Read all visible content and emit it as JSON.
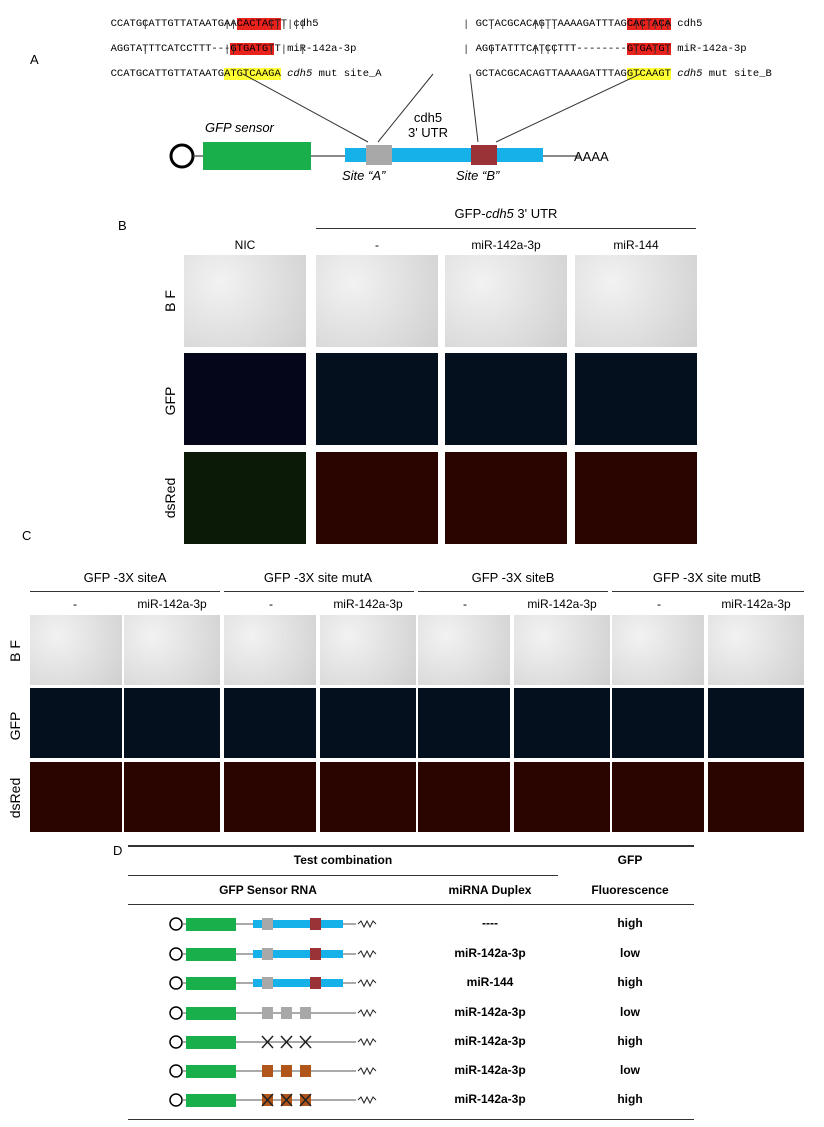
{
  "panels": {
    "A": "A",
    "B": "B",
    "C": "C",
    "D": "D"
  },
  "panelA": {
    "left": {
      "seq1": "CCATGCATTGTTATAATGAA",
      "seq1_hl": "CACTACT",
      "seq1_end": "T",
      "seq1_label": "cdh5",
      "seq2": "AGGTATTTCATCCTTT---",
      "seq2_hl": "GTGATGT",
      "seq2_end": "T",
      "seq2_label": "miR-142a-3p",
      "seq3": "CCATGCATTGTTATAATG",
      "seq3_mut": "ATGTCAAGA",
      "seq3_label_it": "cdh5",
      "seq3_label": " mut site_A"
    },
    "right": {
      "seq1": "GCTACGCACAGTTAAAAGATTTAG",
      "seq1_hl": "CACTACA",
      "seq1_label": "cdh5",
      "seq2": "AGGTATTTCATCCTTT--------",
      "seq2_hl": "GTGATGT",
      "seq2_label": "miR-142a-3p",
      "seq3": "GCTACGCACAGTTAAAAGATTTAG",
      "seq3_mut": "GTCAAGT",
      "seq3_label_it": "cdh5",
      "seq3_label": " mut site_B"
    },
    "gfp_sensor": "GFP sensor",
    "utr_label1": "cdh5",
    "utr_label2": "3' UTR",
    "siteA": "Site “A”",
    "siteB": "Site “B”",
    "polyA": "AAAA"
  },
  "panelB": {
    "header": "GFP-",
    "header_it": "cdh5",
    "header_end": " 3' UTR",
    "cols": [
      "NIC",
      "-",
      "miR-142a-3p",
      "miR-144"
    ],
    "rows": [
      "B F",
      "GFP",
      "dsRed"
    ]
  },
  "panelC": {
    "groups": [
      "GFP -3X siteA",
      "GFP -3X site mutA",
      "GFP -3X siteB",
      "GFP -3X site mutB"
    ],
    "sub": [
      "-",
      "miR-142a-3p"
    ],
    "rows": [
      "B F",
      "GFP",
      "dsRed"
    ]
  },
  "panelD": {
    "header_test": "Test combination",
    "header_gfp": "GFP",
    "col_sensor": "GFP Sensor RNA",
    "col_duplex": "miRNA Duplex",
    "col_fluor": "Fluorescence",
    "rows": [
      {
        "duplex": "----",
        "fluor": "high"
      },
      {
        "duplex": "miR-142a-3p",
        "fluor": "low"
      },
      {
        "duplex": "miR-144",
        "fluor": "high"
      },
      {
        "duplex": "miR-142a-3p",
        "fluor": "low"
      },
      {
        "duplex": "miR-142a-3p",
        "fluor": "high"
      },
      {
        "duplex": "miR-142a-3p",
        "fluor": "low"
      },
      {
        "duplex": "miR-142a-3p",
        "fluor": "high"
      }
    ]
  },
  "colors": {
    "green": "#19b04b",
    "blue": "#16b1e8",
    "grey": "#a8a8a8",
    "maroon": "#9a3338",
    "orange": "#b0561a"
  }
}
